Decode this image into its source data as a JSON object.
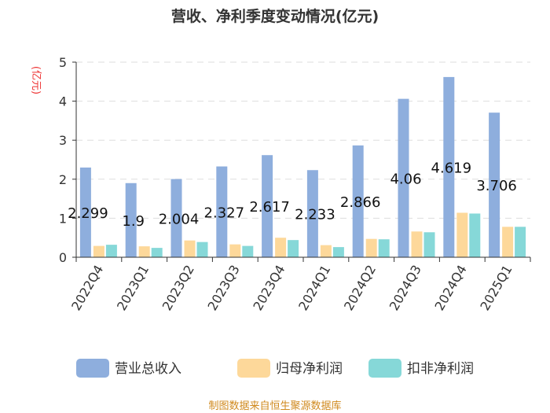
{
  "chart_data": {
    "type": "bar",
    "title": "营收、净利季度变动情况(亿元)",
    "ylabel": "(亿元)",
    "ylim": [
      0,
      5
    ],
    "yticks": [
      0,
      1,
      2,
      3,
      4,
      5
    ],
    "grid": true,
    "legend_position": "bottom",
    "categories": [
      "2022Q4",
      "2023Q1",
      "2023Q2",
      "2023Q3",
      "2023Q4",
      "2024Q1",
      "2024Q2",
      "2024Q3",
      "2024Q4",
      "2025Q1"
    ],
    "series": [
      {
        "name": "营业总收入",
        "color": "#8eaedd",
        "values": [
          2.299,
          1.9,
          2.004,
          2.327,
          2.617,
          2.233,
          2.866,
          4.06,
          4.619,
          3.706
        ],
        "labels": [
          "2.299",
          "1.9",
          "2.004",
          "2.327",
          "2.617",
          "2.233",
          "2.866",
          "4.06",
          "4.619",
          "3.706"
        ]
      },
      {
        "name": "归母净利润",
        "color": "#fdd89a",
        "values": [
          0.29,
          0.28,
          0.43,
          0.33,
          0.5,
          0.31,
          0.47,
          0.66,
          1.14,
          0.78
        ]
      },
      {
        "name": "扣非净利润",
        "color": "#86d8d8",
        "values": [
          0.32,
          0.24,
          0.39,
          0.29,
          0.44,
          0.26,
          0.46,
          0.64,
          1.12,
          0.78
        ]
      }
    ]
  },
  "footer": "制图数据来自恒生聚源数据库"
}
